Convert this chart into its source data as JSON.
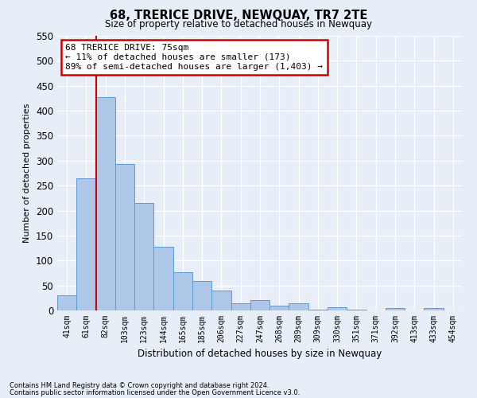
{
  "title": "68, TRERICE DRIVE, NEWQUAY, TR7 2TE",
  "subtitle": "Size of property relative to detached houses in Newquay",
  "xlabel": "Distribution of detached houses by size in Newquay",
  "ylabel": "Number of detached properties",
  "bar_labels": [
    "41sqm",
    "61sqm",
    "82sqm",
    "103sqm",
    "123sqm",
    "144sqm",
    "165sqm",
    "185sqm",
    "206sqm",
    "227sqm",
    "247sqm",
    "268sqm",
    "289sqm",
    "309sqm",
    "330sqm",
    "351sqm",
    "371sqm",
    "392sqm",
    "413sqm",
    "433sqm",
    "454sqm"
  ],
  "bar_values": [
    30,
    265,
    428,
    293,
    215,
    128,
    76,
    59,
    40,
    15,
    21,
    10,
    14,
    2,
    7,
    1,
    0,
    5,
    0,
    4,
    0
  ],
  "bar_color": "#aec6e8",
  "bar_edge_color": "#5b9bd5",
  "vline_color": "#cc0000",
  "ylim": [
    0,
    550
  ],
  "yticks": [
    0,
    50,
    100,
    150,
    200,
    250,
    300,
    350,
    400,
    450,
    500,
    550
  ],
  "annotation_title": "68 TRERICE DRIVE: 75sqm",
  "annotation_line1": "← 11% of detached houses are smaller (173)",
  "annotation_line2": "89% of semi-detached houses are larger (1,403) →",
  "annotation_box_color": "#cc0000",
  "footnote1": "Contains HM Land Registry data © Crown copyright and database right 2024.",
  "footnote2": "Contains public sector information licensed under the Open Government Licence v3.0.",
  "bg_color": "#e8eef7",
  "plot_bg_color": "#e8eef7"
}
